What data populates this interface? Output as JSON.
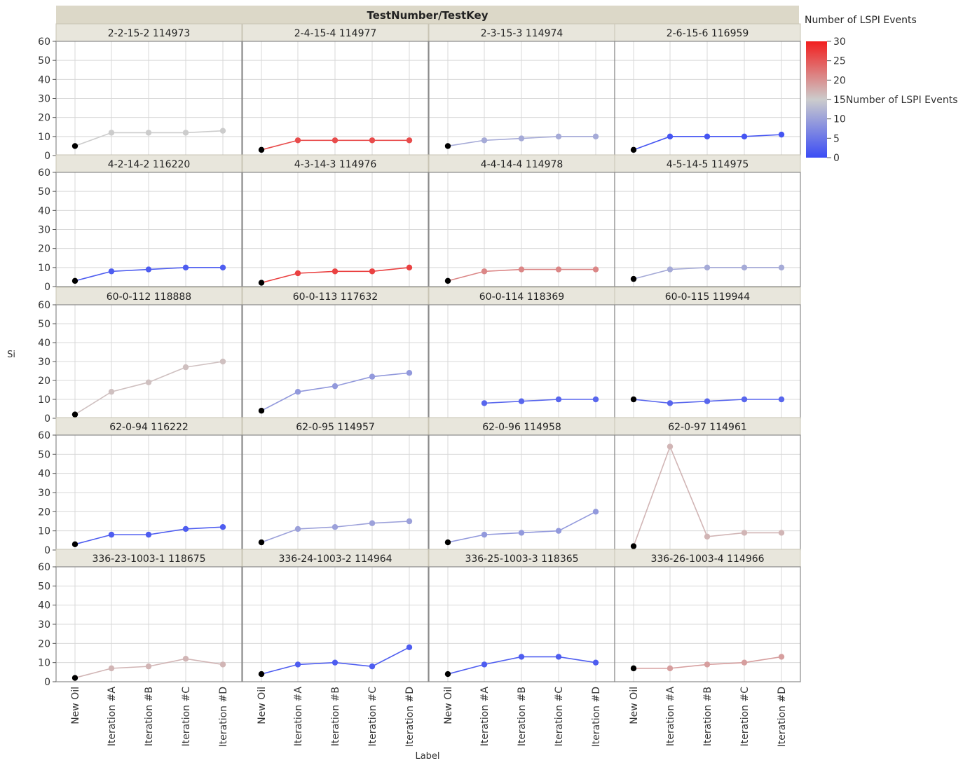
{
  "chart_data": {
    "type": "line",
    "title": "TestNumber/TestKey",
    "xlabel": "Label",
    "ylabel": "Si",
    "categories": [
      "New Oil",
      "Iteration #A",
      "Iteration #B",
      "Iteration #C",
      "Iteration #D"
    ],
    "ylim": [
      0,
      60
    ],
    "yticks": [
      0,
      10,
      20,
      30,
      40,
      50,
      60
    ],
    "grid": true,
    "legend": {
      "title": "Number of LSPI Events",
      "position": "right",
      "ticks": [
        0,
        5,
        10,
        15,
        20,
        25,
        30
      ],
      "tick_labels": [
        "0",
        "5",
        "10",
        "15Number of LSPI Events",
        "20",
        "25",
        "30"
      ],
      "color_min": "#3b4cf5",
      "color_mid": "#cccccc",
      "color_max": "#f21e1e",
      "new_oil_color": "#000000"
    },
    "panels": [
      {
        "title": "2-2-15-2 114973",
        "values": [
          5,
          12,
          12,
          12,
          13
        ],
        "lspi": 15
      },
      {
        "title": "2-4-15-4 114977",
        "values": [
          3,
          8,
          8,
          8,
          8
        ],
        "lspi": 26
      },
      {
        "title": "2-3-15-3 114974",
        "values": [
          5,
          8,
          9,
          10,
          10
        ],
        "lspi": 11
      },
      {
        "title": "2-6-15-6 116959",
        "values": [
          3,
          10,
          10,
          10,
          11
        ],
        "lspi": 1
      },
      {
        "title": "4-2-14-2 116220",
        "values": [
          3,
          8,
          9,
          10,
          10
        ],
        "lspi": 2
      },
      {
        "title": "4-3-14-3 114976",
        "values": [
          2,
          7,
          8,
          8,
          10
        ],
        "lspi": 27
      },
      {
        "title": "4-4-14-4 114978",
        "values": [
          3,
          8,
          9,
          9,
          9
        ],
        "lspi": 21
      },
      {
        "title": "4-5-14-5 114975",
        "values": [
          4,
          9,
          10,
          10,
          10
        ],
        "lspi": 11
      },
      {
        "title": "60-0-112 118888",
        "values": [
          2,
          14,
          19,
          27,
          30
        ],
        "lspi": 16
      },
      {
        "title": "60-0-113 117632",
        "values": [
          4,
          14,
          17,
          22,
          24
        ],
        "lspi": 9
      },
      {
        "title": "60-0-114 118369",
        "values": [
          null,
          8,
          9,
          10,
          10
        ],
        "lspi": 3
      },
      {
        "title": "60-0-115 119944",
        "values": [
          10,
          8,
          9,
          10,
          10
        ],
        "lspi": 3
      },
      {
        "title": "62-0-94 116222",
        "values": [
          3,
          8,
          8,
          11,
          12
        ],
        "lspi": 2
      },
      {
        "title": "62-0-95 114957",
        "values": [
          4,
          11,
          12,
          14,
          15
        ],
        "lspi": 10
      },
      {
        "title": "62-0-96 114958",
        "values": [
          4,
          8,
          9,
          10,
          20
        ],
        "lspi": 9
      },
      {
        "title": "62-0-97 114961",
        "values": [
          2,
          54,
          7,
          9,
          9
        ],
        "lspi": 17
      },
      {
        "title": "336-23-1003-1 118675",
        "values": [
          2,
          7,
          8,
          12,
          9
        ],
        "lspi": 17
      },
      {
        "title": "336-24-1003-2 114964",
        "values": [
          4,
          9,
          10,
          8,
          18
        ],
        "lspi": 2
      },
      {
        "title": "336-25-1003-3 118365",
        "values": [
          4,
          9,
          13,
          13,
          10
        ],
        "lspi": 2
      },
      {
        "title": "336-26-1003-4 114966",
        "values": [
          7,
          7,
          9,
          10,
          13
        ],
        "lspi": 19
      }
    ]
  }
}
